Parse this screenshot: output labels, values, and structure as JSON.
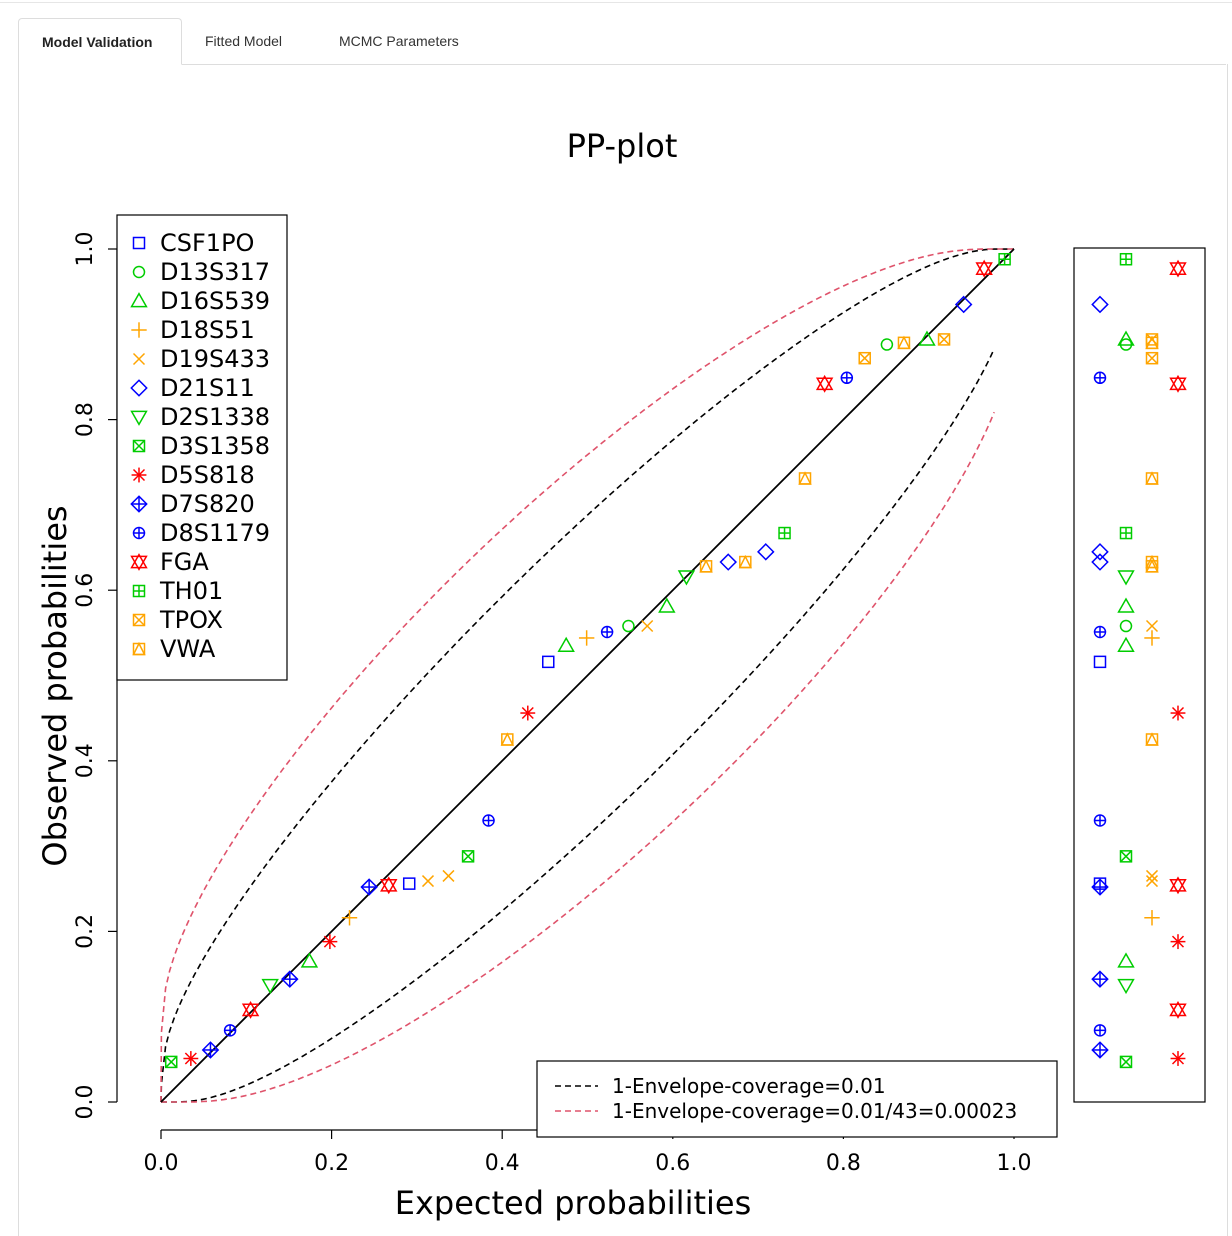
{
  "tabs": [
    {
      "label": "Model Validation",
      "active": true
    },
    {
      "label": "Fitted Model",
      "active": false
    },
    {
      "label": "MCMC Parameters",
      "active": false
    }
  ],
  "chart_data": {
    "type": "scatter",
    "title": "PP-plot",
    "xlabel": "Expected probabilities",
    "ylabel": "Observed probabilities",
    "xlim": [
      0,
      1
    ],
    "ylim": [
      0,
      1
    ],
    "x_ticks": [
      "0.0",
      "0.2",
      "0.4",
      "0.6",
      "0.8",
      "1.0"
    ],
    "y_ticks": [
      "0.0",
      "0.2",
      "0.4",
      "0.6",
      "0.8",
      "1.0"
    ],
    "legend_position": "top-left",
    "series": [
      {
        "name": "CSF1PO",
        "color": "#0000FF",
        "symbol": "square",
        "x": [
          0.291,
          0.454
        ],
        "y": [
          0.256,
          0.516
        ]
      },
      {
        "name": "D13S317",
        "color": "#00CD00",
        "symbol": "circle",
        "x": [
          0.548,
          0.851
        ],
        "y": [
          0.558,
          0.888
        ]
      },
      {
        "name": "D16S539",
        "color": "#00CD00",
        "symbol": "triangle",
        "x": [
          0.174,
          0.475,
          0.593,
          0.898
        ],
        "y": [
          0.165,
          0.535,
          0.581,
          0.894
        ]
      },
      {
        "name": "D18S51",
        "color": "#FFA500",
        "symbol": "plus",
        "x": [
          0.221,
          0.499
        ],
        "y": [
          0.216,
          0.544
        ]
      },
      {
        "name": "D19S433",
        "color": "#FFA500",
        "symbol": "cross",
        "x": [
          0.313,
          0.337,
          0.57
        ],
        "y": [
          0.259,
          0.265,
          0.558
        ]
      },
      {
        "name": "D21S11",
        "color": "#0000FF",
        "symbol": "diamond",
        "x": [
          0.665,
          0.709,
          0.941
        ],
        "y": [
          0.633,
          0.645,
          0.935
        ]
      },
      {
        "name": "D2S1338",
        "color": "#00CD00",
        "symbol": "triangle-down",
        "x": [
          0.128,
          0.616
        ],
        "y": [
          0.137,
          0.616
        ]
      },
      {
        "name": "D3S1358",
        "color": "#00CD00",
        "symbol": "square-x",
        "x": [
          0.012,
          0.36
        ],
        "y": [
          0.047,
          0.288
        ]
      },
      {
        "name": "D5S818",
        "color": "#FF0000",
        "symbol": "asterisk",
        "x": [
          0.035,
          0.198,
          0.43
        ],
        "y": [
          0.051,
          0.188,
          0.456
        ]
      },
      {
        "name": "D7S820",
        "color": "#0000FF",
        "symbol": "diamond-plus",
        "x": [
          0.058,
          0.151,
          0.244
        ],
        "y": [
          0.061,
          0.144,
          0.252
        ]
      },
      {
        "name": "D8S1179",
        "color": "#0000FF",
        "symbol": "circle-plus",
        "x": [
          0.081,
          0.384,
          0.523,
          0.804
        ],
        "y": [
          0.084,
          0.33,
          0.551,
          0.849
        ]
      },
      {
        "name": "FGA",
        "color": "#FF0000",
        "symbol": "star-of-david",
        "x": [
          0.105,
          0.267,
          0.778,
          0.965
        ],
        "y": [
          0.108,
          0.254,
          0.842,
          0.977
        ]
      },
      {
        "name": "TH01",
        "color": "#00CD00",
        "symbol": "square-plus",
        "x": [
          0.731,
          0.989
        ],
        "y": [
          0.667,
          0.988
        ]
      },
      {
        "name": "TPOX",
        "color": "#FFA500",
        "symbol": "square-x",
        "x": [
          0.825,
          0.918
        ],
        "y": [
          0.872,
          0.894
        ]
      },
      {
        "name": "VWA",
        "color": "#FFA500",
        "symbol": "square-triangle",
        "x": [
          0.406,
          0.639,
          0.685,
          0.755,
          0.871
        ],
        "y": [
          0.425,
          0.628,
          0.633,
          0.731,
          0.89
        ]
      }
    ],
    "reference_line": {
      "x": [
        0,
        1
      ],
      "y": [
        0,
        1
      ]
    },
    "envelopes": [
      {
        "label": "1-Envelope-coverage=0.01",
        "color": "#000000",
        "style": "dashed",
        "alpha": 0.01
      },
      {
        "label": "1-Envelope-coverage=0.01/43=0.00023",
        "color": "#DF536B",
        "style": "dashed",
        "alpha": 0.00023
      }
    ],
    "sample_size": 43,
    "side_panel": {
      "shows": "observed probabilities per marker group"
    }
  }
}
